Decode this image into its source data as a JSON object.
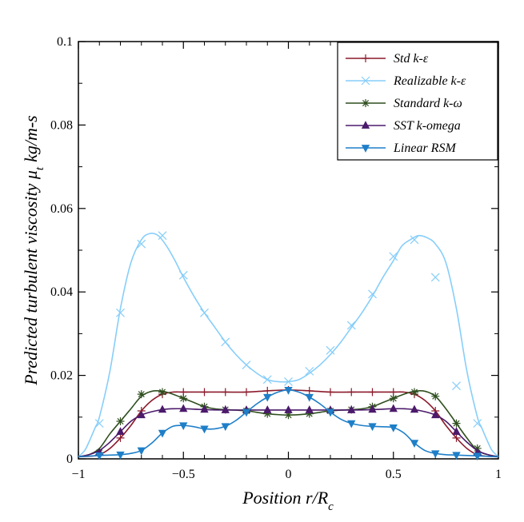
{
  "chart_data": {
    "type": "line",
    "title": "",
    "xlabel": "Position r/R",
    "xlabel_sub": "c",
    "ylabel": "Predicted turbulent viscosity μ",
    "ylabel_sub": "t",
    "ylabel_unit": "kg/m-s",
    "xlim": [
      -1,
      1
    ],
    "ylim": [
      0,
      0.1
    ],
    "x_ticks": [
      -1,
      -0.5,
      0,
      0.5,
      1
    ],
    "x_tick_labels": [
      "−1",
      "−0.5",
      "0",
      "0.5",
      "1"
    ],
    "y_ticks": [
      0,
      0.02,
      0.04,
      0.06,
      0.08,
      0.1
    ],
    "y_tick_labels": [
      "0",
      "0.02",
      "0.04",
      "0.06",
      "0.08",
      "0.1"
    ],
    "grid": false,
    "legend_position": "top-right",
    "series": [
      {
        "name": "Std k-ε",
        "color": "#8b1a2b",
        "marker": "plus",
        "x": [
          -1,
          -0.95,
          -0.9,
          -0.85,
          -0.8,
          -0.75,
          -0.7,
          -0.65,
          -0.6,
          -0.55,
          -0.5,
          -0.45,
          -0.4,
          -0.3,
          -0.2,
          -0.1,
          0,
          0.1,
          0.2,
          0.3,
          0.4,
          0.45,
          0.5,
          0.55,
          0.6,
          0.65,
          0.7,
          0.75,
          0.8,
          0.85,
          0.9,
          0.95,
          1
        ],
        "values": [
          0.0005,
          0.0006,
          0.001,
          0.0025,
          0.005,
          0.008,
          0.0115,
          0.014,
          0.0155,
          0.016,
          0.016,
          0.016,
          0.016,
          0.016,
          0.016,
          0.0163,
          0.0165,
          0.0163,
          0.016,
          0.016,
          0.016,
          0.016,
          0.016,
          0.016,
          0.0155,
          0.014,
          0.0115,
          0.008,
          0.005,
          0.0025,
          0.001,
          0.0006,
          0.0005
        ],
        "marker_x": [
          -0.9,
          -0.8,
          -0.7,
          -0.6,
          -0.5,
          -0.4,
          -0.3,
          -0.2,
          -0.1,
          0,
          0.1,
          0.2,
          0.3,
          0.4,
          0.5,
          0.6,
          0.7,
          0.8,
          0.9
        ],
        "marker_values": [
          0.001,
          0.005,
          0.0115,
          0.0155,
          0.016,
          0.016,
          0.016,
          0.016,
          0.0163,
          0.0165,
          0.0163,
          0.016,
          0.016,
          0.016,
          0.016,
          0.0155,
          0.0115,
          0.005,
          0.001
        ]
      },
      {
        "name": "Realizable k-ε",
        "color": "#87cefa",
        "marker": "x",
        "x": [
          -1,
          -0.97,
          -0.95,
          -0.92,
          -0.9,
          -0.85,
          -0.8,
          -0.75,
          -0.7,
          -0.66,
          -0.62,
          -0.58,
          -0.54,
          -0.5,
          -0.45,
          -0.4,
          -0.35,
          -0.3,
          -0.25,
          -0.2,
          -0.15,
          -0.1,
          -0.05,
          0,
          0.05,
          0.1,
          0.15,
          0.2,
          0.25,
          0.3,
          0.35,
          0.4,
          0.45,
          0.5,
          0.54,
          0.58,
          0.62,
          0.66,
          0.7,
          0.75,
          0.8,
          0.85,
          0.9,
          0.92,
          0.95,
          0.97,
          1
        ],
        "values": [
          0.0005,
          0.002,
          0.004,
          0.0075,
          0.01,
          0.021,
          0.036,
          0.047,
          0.0525,
          0.054,
          0.0535,
          0.051,
          0.0475,
          0.0435,
          0.039,
          0.035,
          0.0315,
          0.028,
          0.025,
          0.0225,
          0.0205,
          0.019,
          0.0185,
          0.0185,
          0.019,
          0.0205,
          0.0225,
          0.025,
          0.028,
          0.0315,
          0.035,
          0.039,
          0.0435,
          0.0475,
          0.051,
          0.0525,
          0.0535,
          0.053,
          0.0515,
          0.047,
          0.036,
          0.021,
          0.01,
          0.0075,
          0.004,
          0.002,
          0.0005
        ],
        "marker_x": [
          -0.9,
          -0.8,
          -0.7,
          -0.6,
          -0.5,
          -0.4,
          -0.3,
          -0.2,
          -0.1,
          0,
          0.1,
          0.2,
          0.3,
          0.4,
          0.5,
          0.6,
          0.7,
          0.8,
          0.9
        ],
        "marker_values": [
          0.0085,
          0.035,
          0.0515,
          0.0535,
          0.044,
          0.035,
          0.028,
          0.0225,
          0.019,
          0.0185,
          0.021,
          0.026,
          0.032,
          0.0395,
          0.0485,
          0.0525,
          0.0435,
          0.0175,
          0.0085
        ]
      },
      {
        "name": "Standard k-ω",
        "color": "#2f4f1f",
        "marker": "star",
        "x": [
          -1,
          -0.95,
          -0.9,
          -0.85,
          -0.8,
          -0.75,
          -0.7,
          -0.65,
          -0.6,
          -0.55,
          -0.5,
          -0.45,
          -0.4,
          -0.35,
          -0.3,
          -0.2,
          -0.1,
          0,
          0.1,
          0.2,
          0.3,
          0.35,
          0.4,
          0.45,
          0.5,
          0.55,
          0.6,
          0.65,
          0.7,
          0.75,
          0.8,
          0.85,
          0.9,
          0.95,
          1
        ],
        "values": [
          0.0005,
          0.001,
          0.0025,
          0.006,
          0.009,
          0.012,
          0.015,
          0.0162,
          0.0162,
          0.0155,
          0.0145,
          0.0135,
          0.0125,
          0.012,
          0.0118,
          0.0115,
          0.0108,
          0.0105,
          0.0108,
          0.0115,
          0.0118,
          0.012,
          0.0125,
          0.0135,
          0.0145,
          0.0155,
          0.0162,
          0.0162,
          0.015,
          0.012,
          0.0085,
          0.005,
          0.002,
          0.001,
          0.0005
        ],
        "marker_x": [
          -0.9,
          -0.8,
          -0.7,
          -0.6,
          -0.5,
          -0.4,
          -0.3,
          -0.2,
          -0.1,
          0,
          0.1,
          0.2,
          0.3,
          0.4,
          0.5,
          0.6,
          0.7,
          0.8,
          0.9
        ],
        "marker_values": [
          0.0015,
          0.009,
          0.0155,
          0.016,
          0.0145,
          0.0125,
          0.0118,
          0.0115,
          0.0108,
          0.0105,
          0.0108,
          0.0115,
          0.0118,
          0.0125,
          0.0145,
          0.016,
          0.015,
          0.0085,
          0.0025
        ]
      },
      {
        "name": "SST k-omega",
        "color": "#4b1a6b",
        "marker": "triangle-up",
        "x": [
          -1,
          -0.95,
          -0.9,
          -0.85,
          -0.8,
          -0.75,
          -0.7,
          -0.65,
          -0.6,
          -0.55,
          -0.5,
          -0.4,
          -0.3,
          -0.2,
          -0.1,
          0,
          0.1,
          0.2,
          0.3,
          0.4,
          0.5,
          0.55,
          0.6,
          0.65,
          0.7,
          0.75,
          0.8,
          0.85,
          0.9,
          0.95,
          1
        ],
        "values": [
          0.0005,
          0.001,
          0.002,
          0.004,
          0.0065,
          0.009,
          0.0105,
          0.0113,
          0.0118,
          0.012,
          0.012,
          0.0118,
          0.0117,
          0.0117,
          0.0117,
          0.0117,
          0.0117,
          0.0117,
          0.0117,
          0.0118,
          0.012,
          0.012,
          0.0118,
          0.0113,
          0.0105,
          0.009,
          0.0065,
          0.004,
          0.002,
          0.001,
          0.0005
        ],
        "marker_x": [
          -0.9,
          -0.8,
          -0.7,
          -0.6,
          -0.5,
          -0.4,
          -0.3,
          -0.2,
          -0.1,
          0,
          0.1,
          0.2,
          0.3,
          0.4,
          0.5,
          0.6,
          0.7,
          0.8,
          0.9
        ],
        "marker_values": [
          0.0015,
          0.0065,
          0.0105,
          0.0118,
          0.012,
          0.0118,
          0.0117,
          0.0117,
          0.0117,
          0.0117,
          0.0117,
          0.0117,
          0.0117,
          0.0118,
          0.012,
          0.0118,
          0.0105,
          0.0065,
          0.0015
        ]
      },
      {
        "name": "Linear RSM",
        "color": "#1e7fc8",
        "marker": "triangle-down",
        "x": [
          -1,
          -0.9,
          -0.8,
          -0.75,
          -0.7,
          -0.65,
          -0.6,
          -0.55,
          -0.5,
          -0.45,
          -0.4,
          -0.35,
          -0.3,
          -0.25,
          -0.2,
          -0.15,
          -0.1,
          -0.05,
          0,
          0.05,
          0.1,
          0.15,
          0.2,
          0.25,
          0.3,
          0.35,
          0.4,
          0.45,
          0.5,
          0.55,
          0.6,
          0.65,
          0.7,
          0.75,
          0.8,
          0.9,
          1
        ],
        "values": [
          0.0005,
          0.0008,
          0.001,
          0.0013,
          0.002,
          0.0038,
          0.0062,
          0.0078,
          0.008,
          0.0077,
          0.0072,
          0.0072,
          0.0078,
          0.0092,
          0.0112,
          0.0132,
          0.0148,
          0.016,
          0.0165,
          0.016,
          0.0148,
          0.0132,
          0.0112,
          0.0095,
          0.0085,
          0.008,
          0.0078,
          0.0077,
          0.0075,
          0.0062,
          0.0038,
          0.002,
          0.0013,
          0.001,
          0.0009,
          0.0007,
          0.0005
        ],
        "marker_x": [
          -0.9,
          -0.8,
          -0.7,
          -0.6,
          -0.5,
          -0.4,
          -0.3,
          -0.2,
          -0.1,
          0,
          0.1,
          0.2,
          0.3,
          0.4,
          0.5,
          0.6,
          0.7,
          0.8,
          0.9
        ],
        "marker_values": [
          0.0008,
          0.001,
          0.002,
          0.0062,
          0.008,
          0.0072,
          0.0078,
          0.0112,
          0.0148,
          0.0165,
          0.0148,
          0.0112,
          0.0085,
          0.0078,
          0.0075,
          0.0038,
          0.0013,
          0.0009,
          0.0007
        ]
      }
    ]
  }
}
